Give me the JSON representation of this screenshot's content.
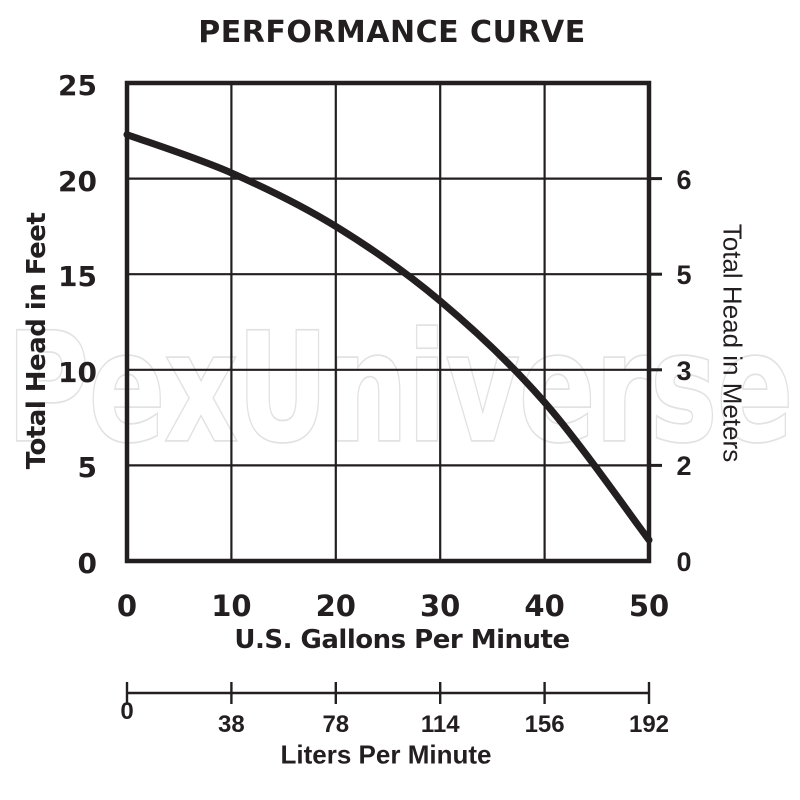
{
  "page": {
    "background": "#ffffff"
  },
  "watermark": {
    "text": "PexUniverse",
    "outline_color": "#e2e2e2",
    "fill_color": "#ffffff"
  },
  "chart_data": {
    "type": "line",
    "title": "PERFORMANCE CURVE",
    "grid": true,
    "colors": {
      "line": "#231f20",
      "grid": "#231f20",
      "frame": "#231f20",
      "text": "#231f20"
    },
    "x_axis": {
      "label": "U.S. Gallons Per Minute",
      "range": [
        0,
        50
      ],
      "ticks": [
        0,
        10,
        20,
        30,
        40,
        50
      ]
    },
    "y_axis_left": {
      "label": "Total Head in Feet",
      "range": [
        0,
        25
      ],
      "ticks": [
        25,
        20,
        15,
        10,
        5,
        0
      ]
    },
    "y_axis_right": {
      "label": "Total Head in Meters",
      "ticks": [
        {
          "label": "6",
          "at_feet": 20,
          "has_mark": true
        },
        {
          "label": "5",
          "at_feet": 15,
          "has_mark": true
        },
        {
          "label": "3",
          "at_feet": 10,
          "has_mark": true
        },
        {
          "label": "2",
          "at_feet": 5,
          "has_mark": true
        },
        {
          "label": "0",
          "at_feet": 0,
          "has_mark": false
        }
      ]
    },
    "liters_axis": {
      "label": "Liters Per Minute",
      "tick_labels": [
        "0",
        "38",
        "78",
        "114",
        "156",
        "192"
      ],
      "at_gpm": [
        0,
        10,
        20,
        30,
        40,
        50
      ]
    },
    "series": [
      {
        "name": "performance-curve",
        "points_gpm_feet": [
          [
            0,
            22.3
          ],
          [
            10,
            20.3
          ],
          [
            20,
            17.5
          ],
          [
            30,
            13.6
          ],
          [
            40,
            8.3
          ],
          [
            50,
            1.1
          ]
        ]
      }
    ]
  }
}
